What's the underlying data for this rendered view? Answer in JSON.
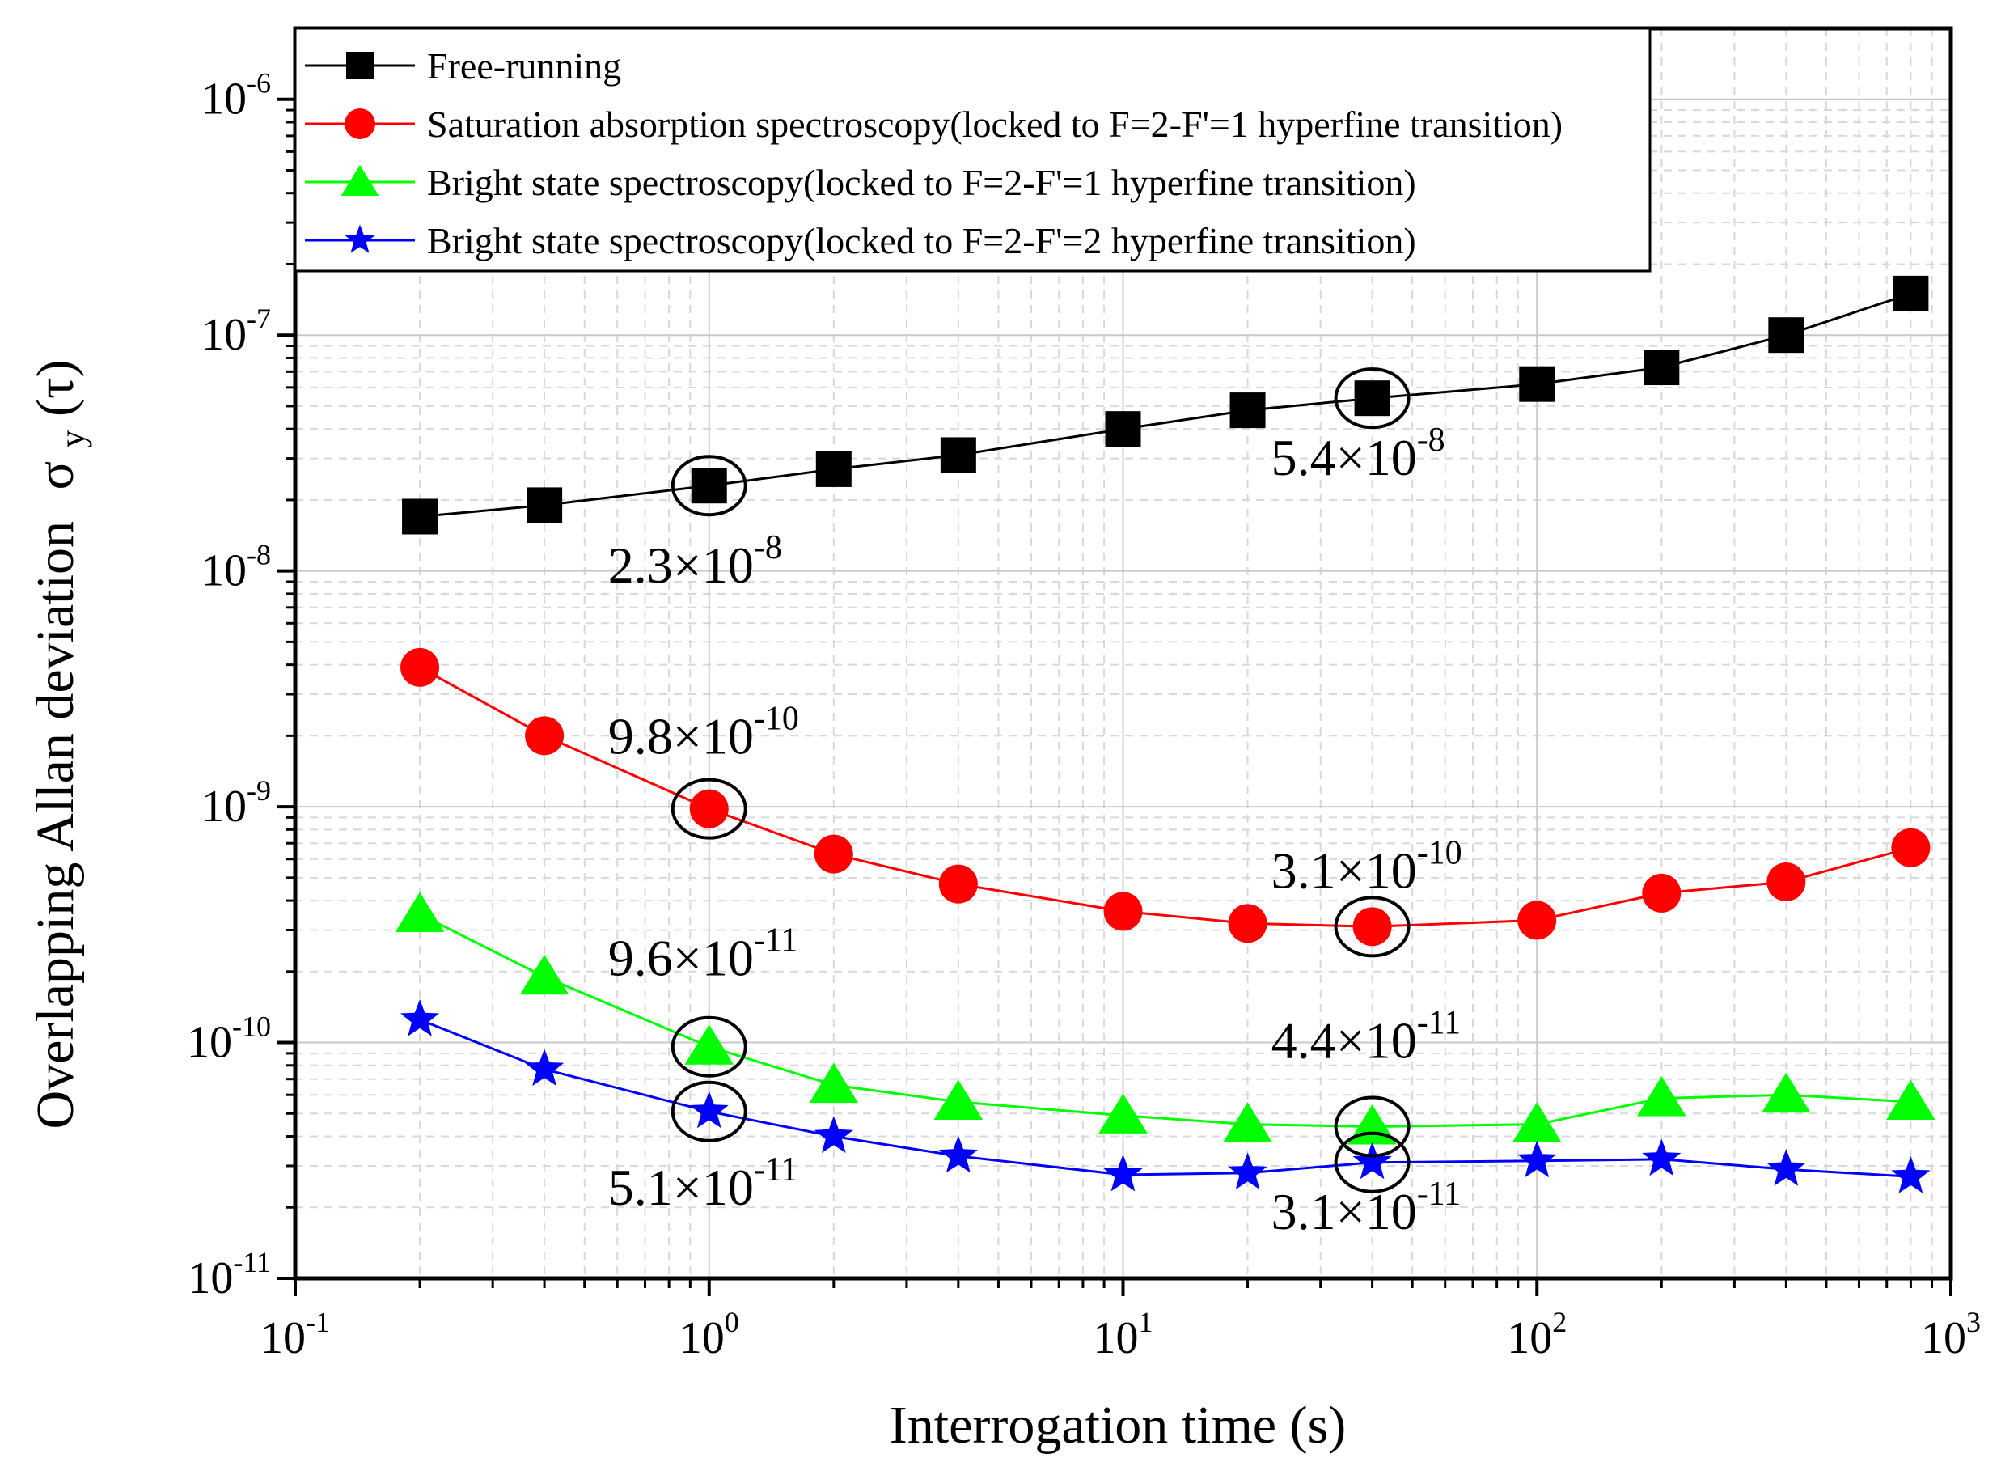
{
  "chart_data": {
    "type": "line",
    "xscale": "log",
    "yscale": "log",
    "xlabel": "Interrogation time (s)",
    "ylabel": "Overlapping Allan deviation",
    "ylabel_symbol": "σ",
    "ylabel_subscript": "y",
    "ylabel_arg": "(τ)",
    "xlim": [
      0.1,
      1000
    ],
    "ylim": [
      1e-11,
      2e-06
    ],
    "x_ticks": [
      {
        "value": 0.1,
        "base": "10",
        "exp": "-1"
      },
      {
        "value": 1,
        "base": "10",
        "exp": "0"
      },
      {
        "value": 10,
        "base": "10",
        "exp": "1"
      },
      {
        "value": 100,
        "base": "10",
        "exp": "2"
      },
      {
        "value": 1000,
        "base": "10",
        "exp": "3"
      }
    ],
    "y_ticks": [
      {
        "value": 1e-11,
        "base": "10",
        "exp": "-11"
      },
      {
        "value": 1e-10,
        "base": "10",
        "exp": "-10"
      },
      {
        "value": 1e-09,
        "base": "10",
        "exp": "-9"
      },
      {
        "value": 1e-08,
        "base": "10",
        "exp": "-8"
      },
      {
        "value": 1e-07,
        "base": "10",
        "exp": "-7"
      },
      {
        "value": 1e-06,
        "base": "10",
        "exp": "-6"
      }
    ],
    "grid": true,
    "legend_position": "top",
    "x": [
      0.2,
      0.4,
      1,
      2,
      4,
      10,
      20,
      40,
      100,
      200,
      400,
      800
    ],
    "series": [
      {
        "name": "Free-running",
        "color": "#000000",
        "marker": "square",
        "values": [
          1.7e-08,
          1.9e-08,
          2.3e-08,
          2.7e-08,
          3.1e-08,
          4e-08,
          4.8e-08,
          5.4e-08,
          6.2e-08,
          7.3e-08,
          1e-07,
          1.5e-07
        ]
      },
      {
        "name": "Saturation absorption spectroscopy(locked to F=2-F'=1 hyperfine transition)",
        "color": "#ff0000",
        "marker": "circle",
        "values": [
          3.9e-09,
          2e-09,
          9.8e-10,
          6.3e-10,
          4.7e-10,
          3.6e-10,
          3.2e-10,
          3.1e-10,
          3.3e-10,
          4.3e-10,
          4.8e-10,
          6.7e-10
        ]
      },
      {
        "name": "Bright state spectroscopy(locked to F=2-F'=1 hyperfine transition)",
        "color": "#00ff00",
        "marker": "triangle",
        "values": [
          3.5e-10,
          1.9e-10,
          9.6e-11,
          6.6e-11,
          5.6e-11,
          4.9e-11,
          4.5e-11,
          4.4e-11,
          4.5e-11,
          5.8e-11,
          6e-11,
          5.6e-11
        ]
      },
      {
        "name": "Bright state spectroscopy(locked to F=2-F'=2 hyperfine transition)",
        "color": "#0000ff",
        "marker": "star",
        "values": [
          1.25e-10,
          7.7e-11,
          5.1e-11,
          4e-11,
          3.3e-11,
          2.75e-11,
          2.8e-11,
          3.1e-11,
          3.15e-11,
          3.2e-11,
          2.9e-11,
          2.7e-11
        ]
      }
    ],
    "annotations": [
      {
        "x": 1,
        "y": 2.3e-08,
        "mantissa": "2.3×10",
        "exp": "-8",
        "circled": true
      },
      {
        "x": 40,
        "y": 5.4e-08,
        "mantissa": "5.4×10",
        "exp": "-8",
        "circled": true
      },
      {
        "x": 1,
        "y": 9.8e-10,
        "mantissa": "9.8×10",
        "exp": "-10",
        "circled": true
      },
      {
        "x": 40,
        "y": 3.1e-10,
        "mantissa": "3.1×10",
        "exp": "-10",
        "circled": true
      },
      {
        "x": 1,
        "y": 9.6e-11,
        "mantissa": "9.6×10",
        "exp": "-11",
        "circled": true
      },
      {
        "x": 40,
        "y": 4.4e-11,
        "mantissa": "4.4×10",
        "exp": "-11",
        "circled": true
      },
      {
        "x": 1,
        "y": 5.1e-11,
        "mantissa": "5.1×10",
        "exp": "-11",
        "circled": true
      },
      {
        "x": 40,
        "y": 3.1e-11,
        "mantissa": "3.1×10",
        "exp": "-11",
        "circled": true
      }
    ]
  }
}
